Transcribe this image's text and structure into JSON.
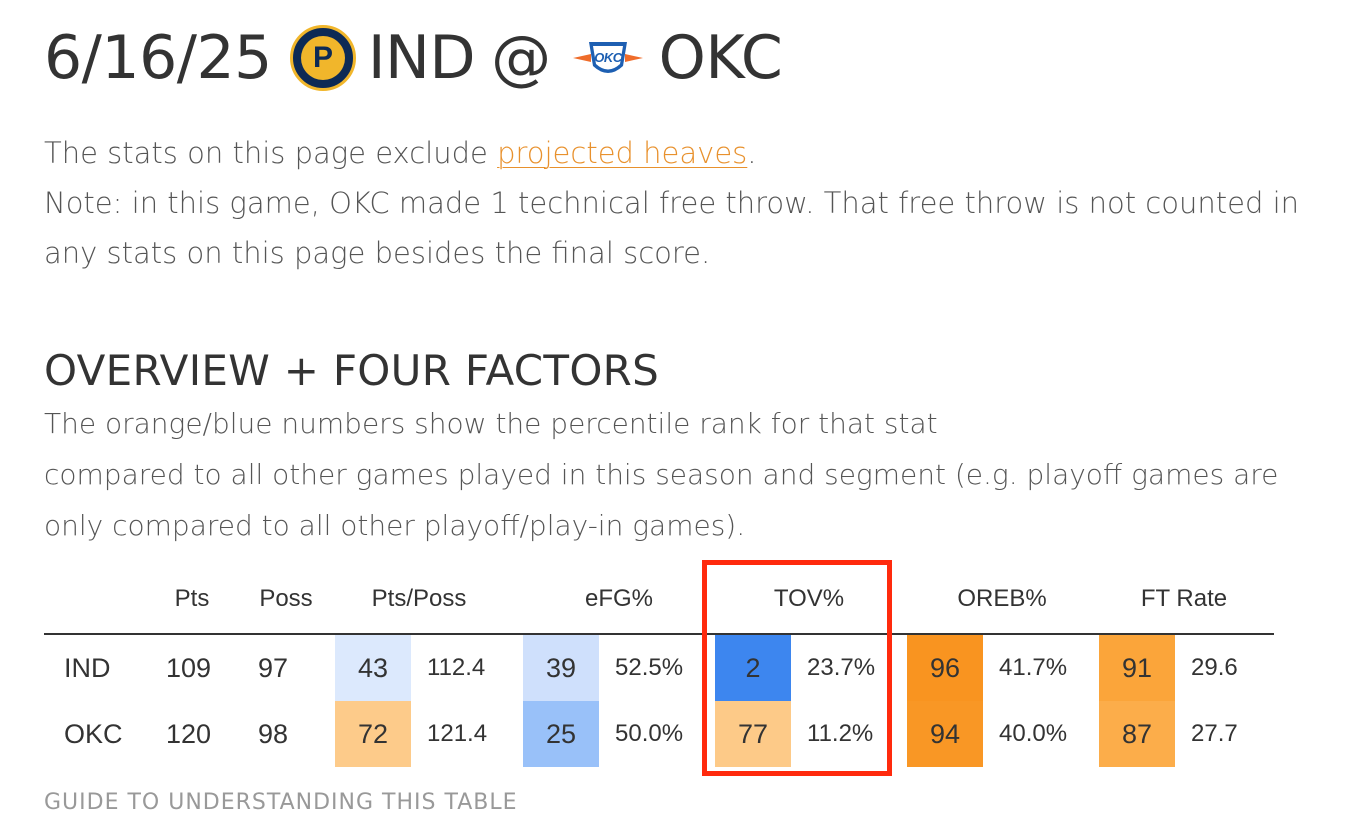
{
  "header": {
    "date": "6/16/25",
    "away_team": "IND",
    "at": "@",
    "home_team": "OKC",
    "away_logo_icon": "pacers-logo-icon",
    "home_logo_icon": "thunder-logo-icon",
    "away_logo_letter": "P",
    "home_logo_text": "OKC"
  },
  "intro": {
    "line1_prefix": "The stats on this page exclude ",
    "line1_link": "projected heaves",
    "line1_suffix": ".",
    "note": "Note: in this game, OKC made 1 technical free throw. That free throw is not counted in any stats on this page besides the final score."
  },
  "section": {
    "title": "OVERVIEW + FOUR FACTORS",
    "desc_line1": "The orange/blue numbers show the percentile rank for that stat",
    "desc_line2": "compared to all other games played in this season and segment (e.g. playoff games are only compared to all other playoff/play-in games)."
  },
  "table": {
    "headers": [
      "Pts",
      "Poss",
      "Pts/Poss",
      "eFG%",
      "TOV%",
      "OREB%",
      "FT Rate"
    ],
    "rows": [
      {
        "team": "IND",
        "pts": "109",
        "poss": "97",
        "ptsposs_pct": "43",
        "ptsposs": "112.4",
        "efg_pct": "39",
        "efg": "52.5%",
        "tov_pct": "2",
        "tov": "23.7%",
        "oreb_pct": "96",
        "oreb": "41.7%",
        "ftr_pct": "91",
        "ftr": "29.6"
      },
      {
        "team": "OKC",
        "pts": "120",
        "poss": "98",
        "ptsposs_pct": "72",
        "ptsposs": "121.4",
        "efg_pct": "25",
        "efg": "50.0%",
        "tov_pct": "77",
        "tov": "11.2%",
        "oreb_pct": "94",
        "oreb": "40.0%",
        "ftr_pct": "87",
        "ftr": "27.7"
      }
    ],
    "colors": {
      "ind_ptsposs": "#dce9fd",
      "okc_ptsposs": "#fdcb8a",
      "ind_efg": "#cfe0fc",
      "okc_efg": "#99c1f9",
      "ind_tov": "#3d86ef",
      "okc_tov": "#fdca88",
      "ind_oreb": "#f99420",
      "okc_oreb": "#f99725",
      "ind_ftr": "#fba53a",
      "okc_ftr": "#fcad4a",
      "highlight": "#ff2a0d"
    }
  },
  "guide": "GUIDE TO UNDERSTANDING THIS TABLE"
}
